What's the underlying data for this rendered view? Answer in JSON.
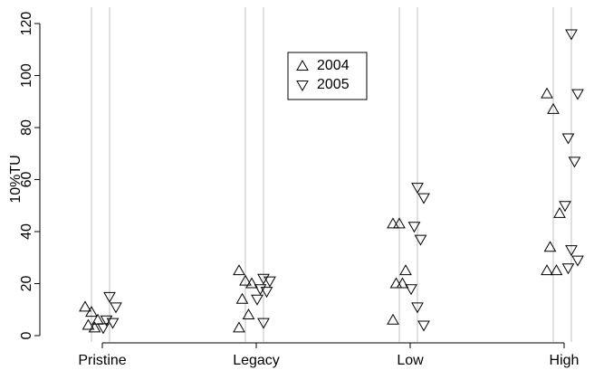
{
  "chart_data": {
    "type": "strip",
    "ylabel": "10%TU",
    "categories": [
      "Pristine",
      "Legacy",
      "Low",
      "High"
    ],
    "series": [
      {
        "name": "2004",
        "marker": "triangle-up",
        "color": "#000000",
        "values": [
          [
            11,
            9,
            6,
            4,
            3
          ],
          [
            25,
            21,
            20,
            14,
            8,
            3
          ],
          [
            43,
            43,
            25,
            20,
            20,
            6
          ],
          [
            93,
            87,
            47,
            34,
            25,
            25
          ]
        ]
      },
      {
        "name": "2005",
        "marker": "triangle-down",
        "color": "#000000",
        "values": [
          [
            15,
            11,
            6,
            5,
            3
          ],
          [
            22,
            21,
            18,
            17,
            14,
            5
          ],
          [
            57,
            53,
            42,
            37,
            18,
            11,
            4
          ],
          [
            116,
            93,
            76,
            67,
            50,
            33,
            29,
            26
          ]
        ]
      }
    ],
    "ylim": [
      0,
      120
    ],
    "yticks": [
      0,
      20,
      40,
      60,
      80,
      100,
      120
    ],
    "legend": "top"
  }
}
